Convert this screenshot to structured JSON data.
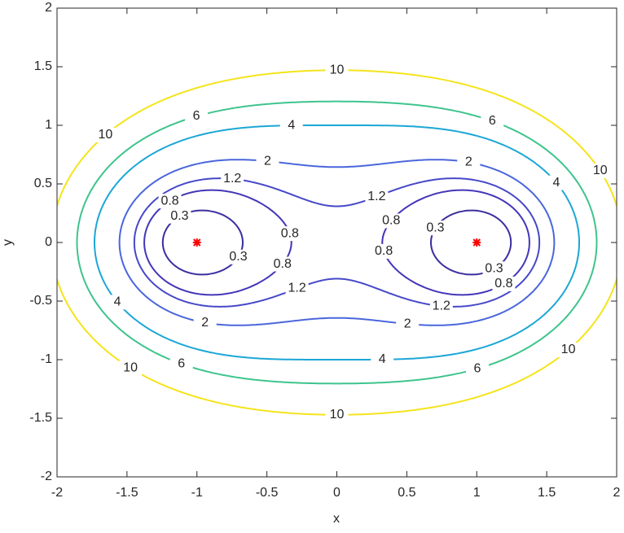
{
  "chart_data": {
    "type": "contour",
    "xlabel": "x",
    "ylabel": "y",
    "xlim": [
      -2,
      2
    ],
    "ylim": [
      -2,
      2
    ],
    "xticks": [
      -2,
      -1.5,
      -1,
      -0.5,
      0,
      0.5,
      1,
      1.5,
      2
    ],
    "yticks": [
      -2,
      -1.5,
      -1,
      -0.5,
      0,
      0.5,
      1,
      1.5,
      2
    ],
    "levels": [
      0.3,
      0.8,
      1.2,
      2,
      4,
      6,
      10
    ],
    "level_colors": [
      "#3b2f9f",
      "#4336b8",
      "#4648c8",
      "#4a66dc",
      "#1ba7d6",
      "#3ec48c",
      "#f4e41c"
    ],
    "points": {
      "x": [
        -1,
        1
      ],
      "y": [
        0,
        0
      ],
      "color": "#ff0000"
    }
  }
}
